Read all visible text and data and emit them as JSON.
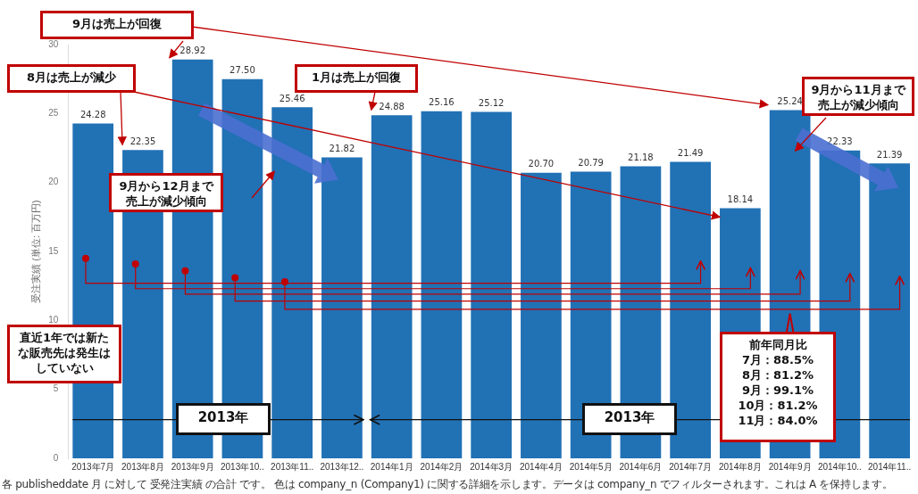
{
  "chart_data": {
    "type": "bar",
    "categories": [
      "2013年7月",
      "2013年8月",
      "2013年9月",
      "2013年10..",
      "2013年11..",
      "2013年12..",
      "2014年1月",
      "2014年2月",
      "2014年3月",
      "2014年4月",
      "2014年5月",
      "2014年6月",
      "2014年7月",
      "2014年8月",
      "2014年9月",
      "2014年10..",
      "2014年11.."
    ],
    "values": [
      24.28,
      22.35,
      28.92,
      27.5,
      25.46,
      21.82,
      24.88,
      25.16,
      25.12,
      20.7,
      20.79,
      21.18,
      21.49,
      18.14,
      25.24,
      22.33,
      21.39
    ],
    "value_labels": [
      "24.28",
      "22.35",
      "28.92",
      "27.50",
      "25.46",
      "21.82",
      "24.88",
      "25.16",
      "25.12",
      "20.70",
      "20.79",
      "21.18",
      "21.49",
      "18.14",
      "25.24",
      "22.33",
      "21.39"
    ],
    "color": "#2171b5",
    "ylabel": "受注実績 (単位: 百万円)",
    "ylim": [
      0,
      30
    ],
    "yticks": [
      0,
      5,
      10,
      15,
      20,
      25,
      30
    ],
    "grid": false,
    "legend": false,
    "annotations": [
      "9月は売上が回復",
      "8月は売上が減少",
      {
        "text": "1月は売上が回復",
        "x": "2014年1月",
        "y": 24.88
      },
      "9月から12月まで売上が減少傾向",
      "9月から11月まで売上が減少傾向",
      "直近1年では新たな販売先は発生はしていない",
      "前年同月比\n7月：88.5%\n8月：81.2%\n9月：99.1%\n10月：81.2%\n11月：84.0%",
      "2013年",
      "2013年",
      "各 publisheddate 月 に対して 受発注実績 の合計 です。 色は company_n (Company1) に関する詳細を示します。データは company_n でフィルターされます。これは A を保持します。"
    ]
  }
}
